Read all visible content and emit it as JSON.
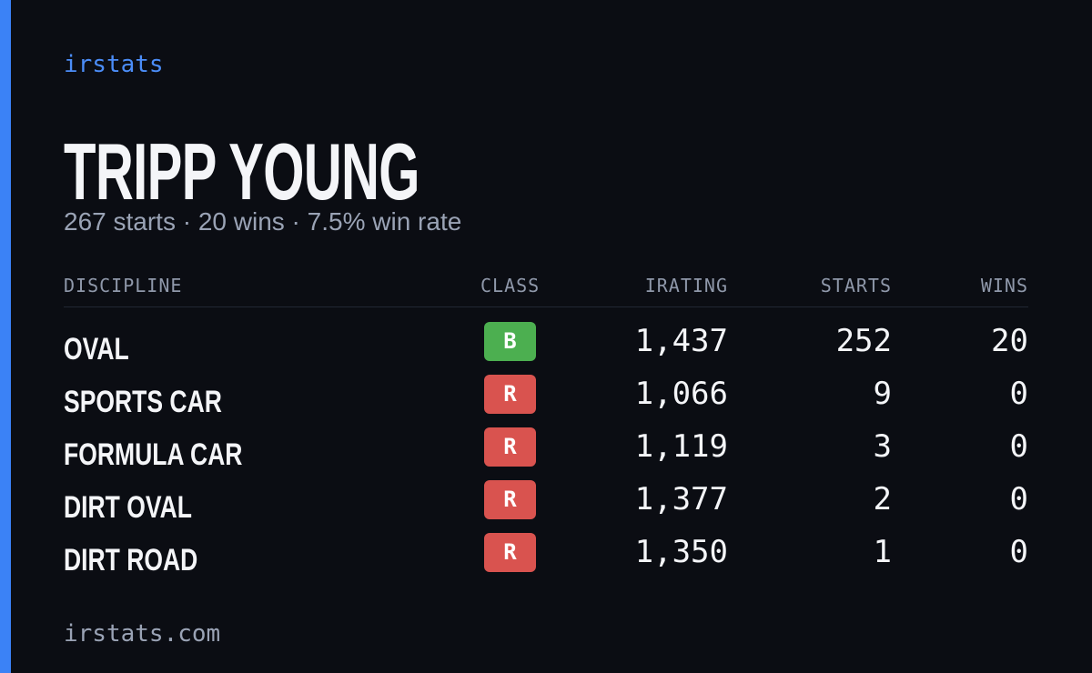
{
  "header": {
    "brand": "irstats",
    "name": "TRIPP YOUNG",
    "summary": "267 starts · 20 wins · 7.5% win rate"
  },
  "table": {
    "columns": [
      "DISCIPLINE",
      "CLASS",
      "IRATING",
      "STARTS",
      "WINS"
    ],
    "rows": [
      [
        "OVAL",
        "B",
        "1,437",
        "252",
        "20"
      ],
      [
        "SPORTS CAR",
        "R",
        "1,066",
        "9",
        "0"
      ],
      [
        "FORMULA CAR",
        "R",
        "1,119",
        "3",
        "0"
      ],
      [
        "DIRT OVAL",
        "R",
        "1,377",
        "2",
        "0"
      ],
      [
        "DIRT ROAD",
        "R",
        "1,350",
        "1",
        "0"
      ]
    ]
  },
  "footer": {
    "url": "irstats.com"
  }
}
